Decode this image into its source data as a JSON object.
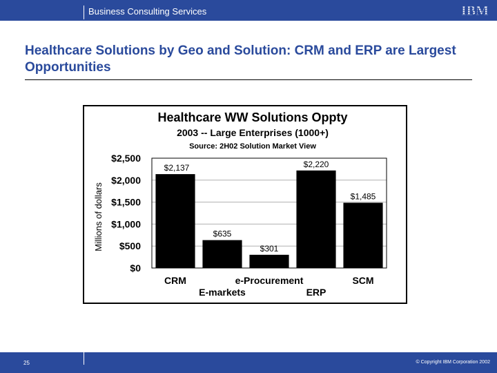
{
  "header": {
    "brand": "Business Consulting Services",
    "logo_text": "IBM",
    "bar_color": "#2a4a9c"
  },
  "slide": {
    "title": "Healthcare Solutions by Geo and Solution:  CRM and ERP are Largest Opportunities",
    "title_color": "#2a4a9c"
  },
  "chart_data": {
    "type": "bar",
    "title": "Healthcare WW Solutions Oppty",
    "subtitle": "2003 -- Large Enterprises (1000+)",
    "source": "Source: 2H02 Solution Market View",
    "ylabel": "Millions of dollars",
    "xlabel": "",
    "categories": [
      "CRM",
      "E-markets",
      "e-Procurement",
      "ERP",
      "SCM"
    ],
    "values": [
      2137,
      635,
      301,
      2220,
      1485
    ],
    "data_labels": [
      "$2,137",
      "$635",
      "$301",
      "$2,220",
      "$1,485"
    ],
    "ylim": [
      0,
      2500
    ],
    "yticks": [
      0,
      500,
      1000,
      1500,
      2000,
      2500
    ],
    "ytick_labels": [
      "$0",
      "$500",
      "$1,000",
      "$1,500",
      "$2,000",
      "$2,500"
    ],
    "bar_color": "#000000",
    "grid": true,
    "legend": "none"
  },
  "footer": {
    "page_number": "25",
    "copyright": "© Copyright IBM Corporation 2002"
  }
}
